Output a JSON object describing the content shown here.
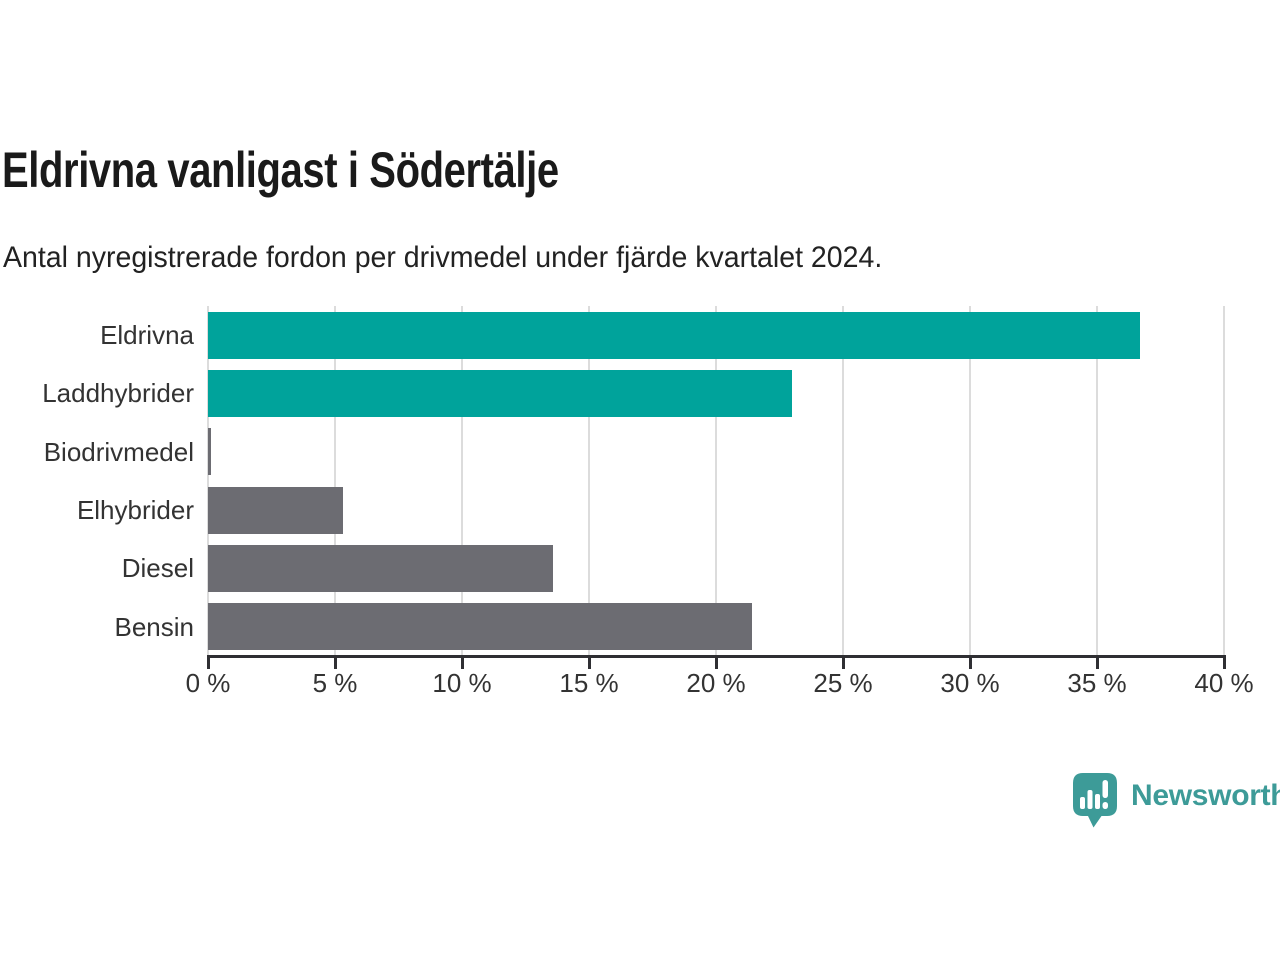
{
  "header": {
    "title": "Eldrivna vanligast i Södertälje",
    "subtitle": "Antal nyregistrerade fordon per drivmedel under fjärde kvartalet 2024."
  },
  "chart_data": {
    "type": "bar",
    "orientation": "horizontal",
    "title": "Eldrivna vanligast i Södertälje",
    "subtitle": "Antal nyregistrerade fordon per drivmedel under fjärde kvartalet 2024.",
    "categories": [
      "Eldrivna",
      "Laddhybrider",
      "Biodrivmedel",
      "Elhybrider",
      "Diesel",
      "Bensin"
    ],
    "values": [
      36.7,
      23.0,
      0.1,
      5.3,
      13.6,
      21.4
    ],
    "unit": "%",
    "bar_colors": [
      "#00a39b",
      "#00a39b",
      "#6c6c72",
      "#6c6c72",
      "#6c6c72",
      "#6c6c72"
    ],
    "xlim": [
      0,
      40
    ],
    "x_tick_values": [
      0,
      5,
      10,
      15,
      20,
      25,
      30,
      35,
      40
    ],
    "x_tick_labels": [
      "0 %",
      "5 %",
      "10 %",
      "15 %",
      "20 %",
      "25 %",
      "30 %",
      "35 %",
      "40 %"
    ],
    "xlabel": "",
    "ylabel": "",
    "grid": "vertical",
    "legend": "none"
  },
  "colors": {
    "accent_teal": "#00a39b",
    "bar_gray": "#6c6c72",
    "gridline": "#dcdcdc",
    "axis": "#2f2f33",
    "title_text": "#1a1a1a",
    "label_text": "#333333",
    "logo_teal": "#3d9b98"
  },
  "footer": {
    "brand": "Newsworthy",
    "logo_icon": "speech-bubble-bar-chart-icon"
  }
}
